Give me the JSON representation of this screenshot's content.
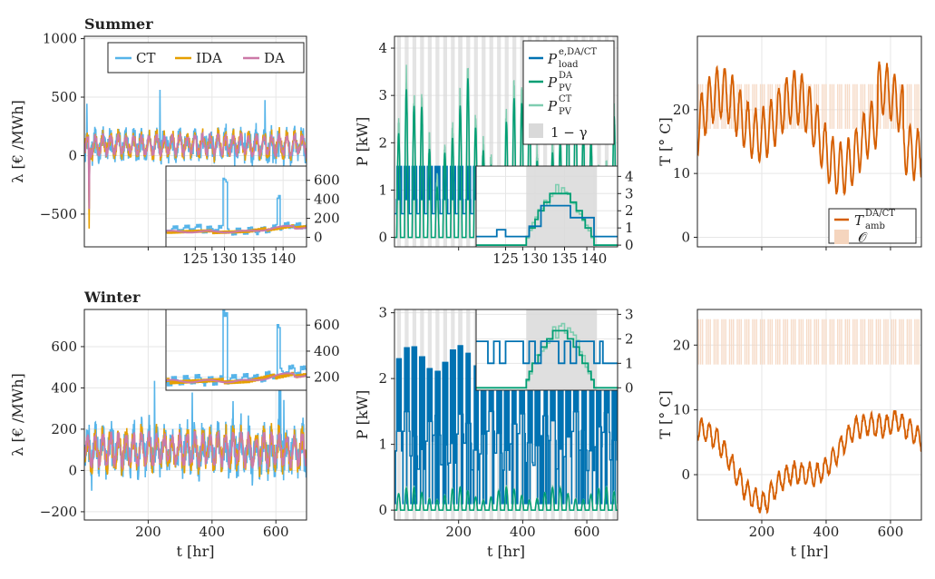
{
  "colors": {
    "CT": "#56B4E9",
    "IDA": "#E69F00",
    "DA": "#CC79A7",
    "load": "#0072B2",
    "pv_da": "#009E73",
    "pv_ct": "#7FCDB0",
    "gamma": "#D9D9D9",
    "tamb": "#D55E00",
    "occ": "#F5D5BE"
  },
  "chart_data": [
    {
      "id": "price-summer",
      "type": "line",
      "title": "Summer",
      "xlabel": "",
      "ylabel": "λ [€ /MWh]",
      "xlim": [
        0,
        696
      ],
      "ylim": [
        -780,
        1020
      ],
      "xticks": [],
      "yticks": [
        -500,
        0,
        500,
        1000
      ],
      "legend": "top-right",
      "series": [
        {
          "name": "CT",
          "values_desc": "hourly, base 80 with spikes up to ~680 and dip to -500"
        },
        {
          "name": "IDA"
        },
        {
          "name": "DA"
        }
      ],
      "inset": {
        "xlim": [
          120,
          144
        ],
        "ylim": [
          -100,
          750
        ],
        "xticks": [
          125,
          130,
          135,
          140
        ],
        "yticks": [
          0,
          200,
          400,
          600
        ]
      }
    },
    {
      "id": "power-summer",
      "type": "line",
      "title": "",
      "xlabel": "",
      "ylabel": "P [kW]",
      "xlim": [
        0,
        696
      ],
      "ylim": [
        -0.2,
        4.25
      ],
      "xticks": [],
      "yticks": [
        0,
        1,
        2,
        3,
        4
      ],
      "legend": "top-right",
      "inset": {
        "xlim": [
          120,
          144
        ],
        "ylim": [
          -0.1,
          4.6
        ],
        "xticks": [
          125,
          130,
          135,
          140
        ],
        "yticks": [
          0,
          1,
          2,
          3,
          4
        ]
      }
    },
    {
      "id": "temp-summer",
      "type": "line",
      "title": "",
      "xlabel": "",
      "ylabel": "T [° C]",
      "xlim": [
        0,
        696
      ],
      "ylim": [
        -1.5,
        31.5
      ],
      "xticks": [],
      "yticks": [
        0,
        10,
        20
      ],
      "legend": "bottom-right"
    },
    {
      "id": "price-winter",
      "type": "line",
      "title": "Winter",
      "xlabel": "t [hr]",
      "ylabel": "λ [€ /MWh]",
      "xlim": [
        0,
        696
      ],
      "ylim": [
        -240,
        780
      ],
      "xticks": [
        200,
        400,
        600
      ],
      "yticks": [
        -200,
        0,
        200,
        400,
        600
      ],
      "inset": {
        "xlim": [
          120,
          144
        ],
        "ylim": [
          100,
          720
        ],
        "yticks": [
          200,
          400,
          600
        ]
      }
    },
    {
      "id": "power-winter",
      "type": "line",
      "title": "",
      "xlabel": "t [hr]",
      "ylabel": "P [kW]",
      "xlim": [
        0,
        696
      ],
      "ylim": [
        -0.15,
        3.05
      ],
      "xticks": [
        200,
        400,
        600
      ],
      "yticks": [
        0,
        1,
        2,
        3
      ],
      "inset": {
        "xlim": [
          120,
          144
        ],
        "ylim": [
          -0.1,
          3.2
        ],
        "yticks": [
          0,
          1,
          2,
          3
        ]
      }
    },
    {
      "id": "temp-winter",
      "type": "line",
      "title": "",
      "xlabel": "t [hr]",
      "ylabel": "T [° C]",
      "xlim": [
        0,
        696
      ],
      "ylim": [
        -7,
        25.5
      ],
      "xticks": [
        200,
        400,
        600
      ],
      "yticks": [
        0,
        10,
        20
      ]
    }
  ],
  "legend_text": {
    "CT": "CT",
    "IDA": "IDA",
    "DA": "DA",
    "load_sym": "P",
    "load_sup": "e,DA/CT",
    "load_sub": "load",
    "pvda_sym": "P",
    "pvda_sup": "DA",
    "pvda_sub": "PV",
    "pvct_sym": "P",
    "pvct_sup": "CT",
    "pvct_sub": "PV",
    "gamma": "1 − γ",
    "tamb_sym": "T",
    "tamb_sup": "DA/CT",
    "tamb_sub": "amb",
    "occ": "𝒪"
  }
}
